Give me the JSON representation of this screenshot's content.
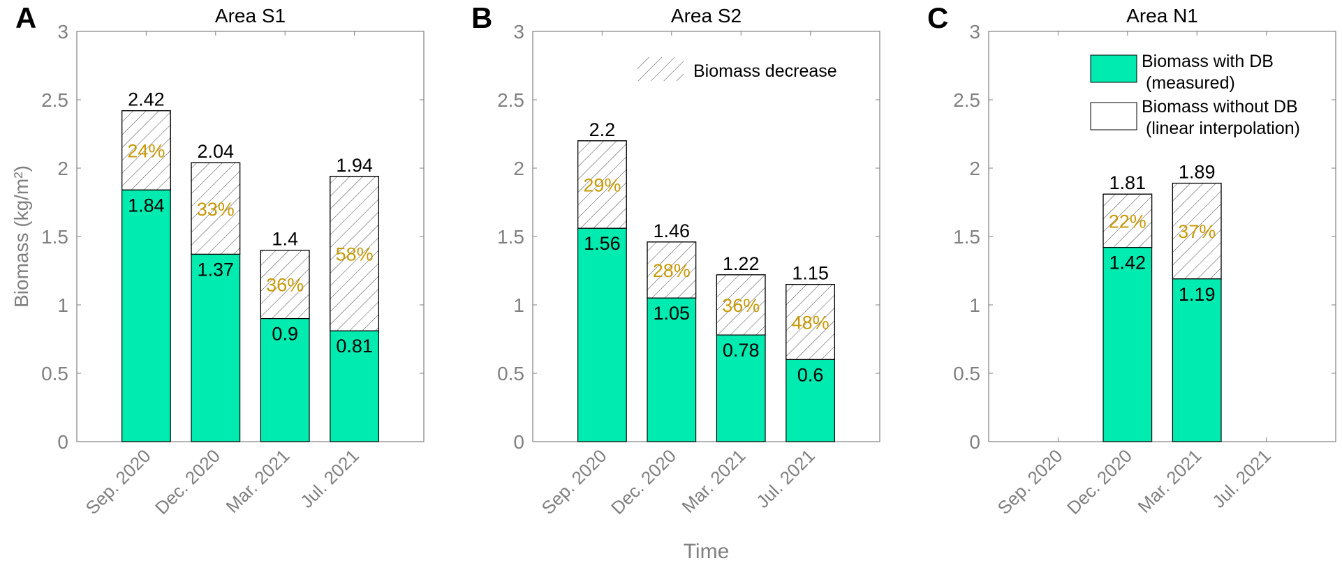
{
  "chart_data": [
    {
      "type": "bar",
      "stacked": true,
      "panel_letter": "A",
      "title": "Area S1",
      "ylabel": "Biomass (kg/m²)",
      "xlabel": "",
      "ylim": [
        0,
        3
      ],
      "yticks": [
        "0",
        "0.5",
        "1",
        "1.5",
        "2",
        "2.5",
        "3"
      ],
      "categories": [
        "Sep. 2020",
        "Dec. 2020",
        "Mar. 2021",
        "Jul. 2021"
      ],
      "with_db": [
        1.84,
        1.37,
        0.9,
        0.81
      ],
      "without_db": [
        2.42,
        2.04,
        1.4,
        1.94
      ],
      "with_db_labels": [
        "1.84",
        "1.37",
        "0.9",
        "0.81"
      ],
      "without_db_labels": [
        "2.42",
        "2.04",
        "1.4",
        "1.94"
      ],
      "decrease_labels": [
        "24%",
        "33%",
        "36%",
        "58%"
      ]
    },
    {
      "type": "bar",
      "stacked": true,
      "panel_letter": "B",
      "title": "Area S2",
      "ylabel": "",
      "xlabel": "Time",
      "ylim": [
        0,
        3
      ],
      "yticks": [
        "0",
        "0.5",
        "1",
        "1.5",
        "2",
        "2.5",
        "3"
      ],
      "categories": [
        "Sep. 2020",
        "Dec. 2020",
        "Mar. 2021",
        "Jul. 2021"
      ],
      "with_db": [
        1.56,
        1.05,
        0.78,
        0.6
      ],
      "without_db": [
        2.2,
        1.46,
        1.22,
        1.15
      ],
      "with_db_labels": [
        "1.56",
        "1.05",
        "0.78",
        "0.6"
      ],
      "without_db_labels": [
        "2.2",
        "1.46",
        "1.22",
        "1.15"
      ],
      "decrease_labels": [
        "29%",
        "28%",
        "36%",
        "48%"
      ],
      "legend": {
        "placement": "top-right",
        "entries": [
          "Biomass decrease"
        ]
      }
    },
    {
      "type": "bar",
      "stacked": true,
      "panel_letter": "C",
      "title": "Area N1",
      "ylabel": "",
      "xlabel": "",
      "ylim": [
        0,
        3
      ],
      "yticks": [
        "0",
        "0.5",
        "1",
        "1.5",
        "2",
        "2.5",
        "3"
      ],
      "categories": [
        "Sep. 2020",
        "Dec. 2020",
        "Mar. 2021",
        "Jul. 2021"
      ],
      "with_db": [
        null,
        1.42,
        1.19,
        null
      ],
      "without_db": [
        null,
        1.81,
        1.89,
        null
      ],
      "with_db_labels": [
        "",
        "1.42",
        "1.19",
        ""
      ],
      "without_db_labels": [
        "",
        "1.81",
        "1.89",
        ""
      ],
      "decrease_labels": [
        "",
        "22%",
        "37%",
        ""
      ],
      "legend": {
        "placement": "top-right",
        "entries": [
          {
            "line1": "Biomass with DB",
            "line2": "(measured)"
          },
          {
            "line1": "Biomass without DB",
            "line2": "(linear interpolation)"
          }
        ]
      }
    }
  ],
  "colors": {
    "with_db": "#00EBB0",
    "percent": "#C99A06",
    "axis": "#808080",
    "hatch": "#444444"
  }
}
